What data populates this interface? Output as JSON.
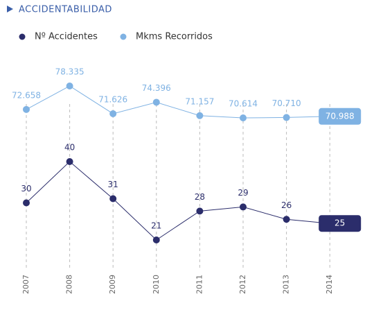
{
  "chart_data": {
    "type": "line",
    "title": "ACCIDENTABILIDAD",
    "categories": [
      "2007",
      "2008",
      "2009",
      "2010",
      "2011",
      "2012",
      "2013",
      "2014"
    ],
    "series": [
      {
        "name": "Nº Accidentes",
        "color": "#2b2d6b",
        "values": [
          30,
          40,
          31,
          21,
          28,
          29,
          26,
          25
        ]
      },
      {
        "name": "Mkms Recorridos",
        "color": "#7fb2e3",
        "values": [
          72.658,
          78.335,
          71.626,
          74.396,
          71.157,
          70.614,
          70.71,
          70.988
        ],
        "value_labels": [
          "72.658",
          "78.335",
          "71.626",
          "74.396",
          "71.157",
          "70.614",
          "70.710",
          "70.988"
        ]
      }
    ]
  }
}
